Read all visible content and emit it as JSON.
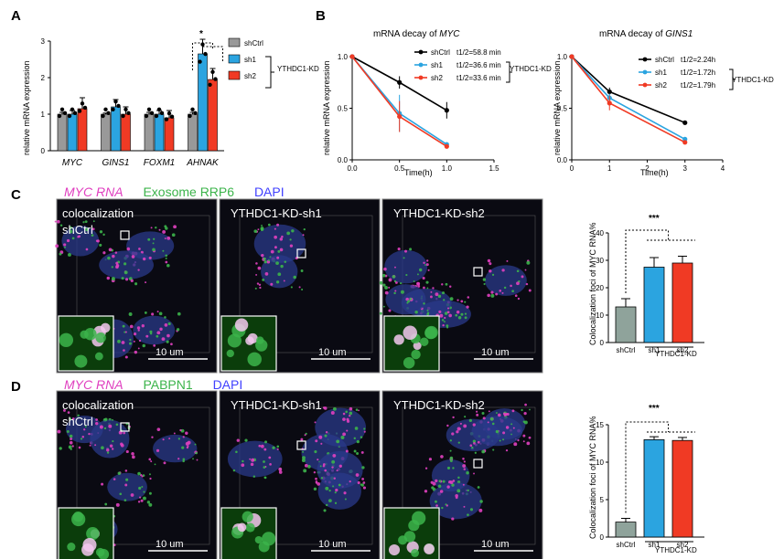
{
  "panels": {
    "a": "A",
    "b": "B",
    "c": "C",
    "d": "D"
  },
  "colors": {
    "shCtrl": "#999999",
    "sh1": "#2ba4e0",
    "sh2": "#f03a24",
    "magenta": "#e040c0",
    "green": "#3cb44b",
    "blue": "#4040ff"
  },
  "panel_a": {
    "ylabel": "relative mRNA expression",
    "sig": "*",
    "kd_label": "YTHDC1-KD",
    "legend": [
      "shCtrl",
      "sh1",
      "sh2"
    ]
  },
  "panel_b": {
    "myc_title_prefix": "mRNA decay of ",
    "myc_title_gene": "MYC",
    "gins_title_prefix": "mRNA decay of ",
    "gins_title_gene": "GINS1",
    "ylabel": "relative mRNA expression",
    "xlabel": "Time(h)",
    "kd_label": "YTHDC1-KD",
    "myc_legend": [
      {
        "name": "shCtrl",
        "half": "t1/2=58.8 min"
      },
      {
        "name": "sh1",
        "half": "t1/2=36.6 min"
      },
      {
        "name": "sh2",
        "half": "t1/2=33.6 min"
      }
    ],
    "gins_legend": [
      {
        "name": "shCtrl",
        "half": "t1/2=2.24h"
      },
      {
        "name": "sh1",
        "half": "t1/2=1.72h"
      },
      {
        "name": "sh2",
        "half": "t1/2=1.79h"
      }
    ]
  },
  "panel_c": {
    "header": [
      "MYC RNA",
      "Exosome RRP6",
      "DAPI"
    ],
    "images": [
      "colocalization shCtrl",
      "YTHDC1-KD-sh1",
      "YTHDC1-KD-sh2"
    ],
    "scale": "10 um",
    "ylabel": "Colocalization foci of MYC RNA%",
    "sig": "***",
    "kd_label": "YTHDC1-KD"
  },
  "panel_d": {
    "header": [
      "MYC RNA",
      "PABPN1",
      "DAPI"
    ],
    "images": [
      "colocalization shCtrl",
      "YTHDC1-KD-sh1",
      "YTHDC1-KD-sh2"
    ],
    "scale": "10 um",
    "ylabel": "Colocalization foci of MYC RNA%",
    "sig": "***",
    "kd_label": "YTHDC1-KD"
  },
  "chart_data": [
    {
      "type": "bar",
      "id": "A",
      "title": "",
      "ylabel": "relative mRNA expression",
      "categories": [
        "MYC",
        "GINS1",
        "FOXM1",
        "AHNAK"
      ],
      "series": [
        {
          "name": "shCtrl",
          "values": [
            1.0,
            1.0,
            1.0,
            1.0
          ],
          "err": [
            0.05,
            0.03,
            0.05,
            0.05
          ]
        },
        {
          "name": "sh1",
          "values": [
            1.0,
            1.2,
            1.0,
            2.65
          ],
          "err": [
            0.1,
            0.2,
            0.1,
            0.4
          ]
        },
        {
          "name": "sh2",
          "values": [
            1.15,
            1.0,
            0.9,
            1.95
          ],
          "err": [
            0.3,
            0.2,
            0.2,
            0.3
          ]
        }
      ],
      "ylim": [
        0,
        3
      ],
      "yticks": [
        0,
        1,
        2,
        3
      ]
    },
    {
      "type": "line",
      "id": "B-MYC",
      "title": "mRNA decay of MYC",
      "xlabel": "Time(h)",
      "ylabel": "relative mRNA expression",
      "xlim": [
        0,
        1.5
      ],
      "ylim": [
        0,
        1.0
      ],
      "xticks": [
        0.0,
        0.5,
        1.0,
        1.5
      ],
      "yticks": [
        0.0,
        0.5,
        1.0
      ],
      "series": [
        {
          "name": "shCtrl",
          "x": [
            0,
            0.5,
            1.0
          ],
          "y": [
            1.0,
            0.75,
            0.48
          ],
          "err": [
            0,
            0.06,
            0.08
          ]
        },
        {
          "name": "sh1",
          "x": [
            0,
            0.5,
            1.0
          ],
          "y": [
            1.0,
            0.45,
            0.15
          ],
          "err": [
            0,
            0.18,
            0.02
          ]
        },
        {
          "name": "sh2",
          "x": [
            0,
            0.5,
            1.0
          ],
          "y": [
            1.0,
            0.42,
            0.13
          ],
          "err": [
            0,
            0.15,
            0.02
          ]
        }
      ]
    },
    {
      "type": "line",
      "id": "B-GINS1",
      "title": "mRNA decay of GINS1",
      "xlabel": "Time(h)",
      "ylabel": "relative mRNA expression",
      "xlim": [
        0,
        4
      ],
      "ylim": [
        0,
        1.0
      ],
      "xticks": [
        0,
        1,
        2,
        3,
        4
      ],
      "yticks": [
        0.0,
        0.5,
        1.0
      ],
      "series": [
        {
          "name": "shCtrl",
          "x": [
            0,
            1,
            3
          ],
          "y": [
            1.0,
            0.66,
            0.36
          ],
          "err": [
            0,
            0.04,
            0.02
          ]
        },
        {
          "name": "sh1",
          "x": [
            0,
            1,
            3
          ],
          "y": [
            1.0,
            0.6,
            0.2
          ],
          "err": [
            0,
            0.04,
            0.02
          ]
        },
        {
          "name": "sh2",
          "x": [
            0,
            1,
            3
          ],
          "y": [
            1.0,
            0.55,
            0.17
          ],
          "err": [
            0,
            0.07,
            0.02
          ]
        }
      ]
    },
    {
      "type": "bar",
      "id": "C",
      "ylabel": "Colocalization foci of MYC RNA%",
      "categories": [
        "shCtrl",
        "sh1",
        "sh2"
      ],
      "values": [
        13,
        27.5,
        29
      ],
      "err": [
        3,
        3.5,
        2.5
      ],
      "ylim": [
        0,
        40
      ],
      "yticks": [
        0,
        10,
        20,
        30,
        40
      ]
    },
    {
      "type": "bar",
      "id": "D",
      "ylabel": "Colocalization foci of MYC RNA%",
      "categories": [
        "shCtrl",
        "sh1",
        "sh2"
      ],
      "values": [
        2,
        13,
        12.9
      ],
      "err": [
        0.5,
        0.4,
        0.4
      ],
      "ylim": [
        0,
        15
      ],
      "yticks": [
        0,
        5,
        10,
        15
      ]
    }
  ]
}
